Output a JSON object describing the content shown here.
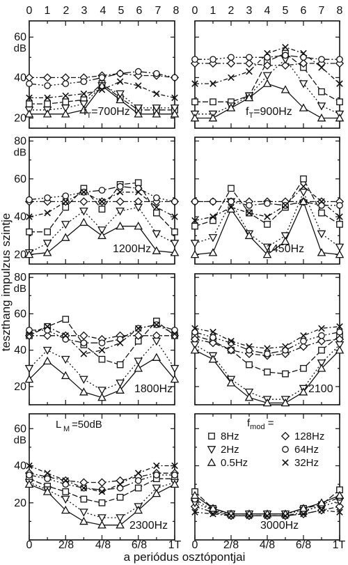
{
  "figure": {
    "y_axis_title": "teszthang impulzus szintje",
    "x_axis_title": "a periódus osztópontjai",
    "top_tick_labels": [
      "0",
      "1",
      "2",
      "3",
      "4",
      "5",
      "6",
      "7",
      "8"
    ],
    "bottom_tick_labels": [
      "0",
      "2/8",
      "4/8",
      "6/8",
      "1T"
    ],
    "unit_label": "dB",
    "lm_label": "L",
    "lm_sub": "M",
    "lm_value": "=50dB"
  },
  "legend": {
    "title": "f",
    "title_sub": "mod",
    "title_suffix": " =",
    "items": [
      {
        "label": "8Hz",
        "marker": "square"
      },
      {
        "label": "128Hz",
        "marker": "diamond"
      },
      {
        "label": "2Hz",
        "marker": "triangle-down"
      },
      {
        "label": "64Hz",
        "marker": "circle"
      },
      {
        "label": "0.5Hz",
        "marker": "triangle-up"
      },
      {
        "label": "32Hz",
        "marker": "cross"
      }
    ]
  },
  "chart_data": [
    {
      "type": "line",
      "panel_label": "f",
      "panel_label_sub": "T",
      "panel_label_suffix": "=700Hz",
      "yticks": [
        20,
        40,
        60
      ],
      "ylim": [
        15,
        68
      ],
      "x": [
        0,
        1,
        2,
        3,
        4,
        5,
        6,
        7,
        8
      ],
      "series": [
        {
          "name": "8Hz",
          "marker": "square",
          "dash": "8,3",
          "values": [
            27,
            27,
            28,
            29,
            37,
            30,
            24,
            24,
            24
          ]
        },
        {
          "name": "128Hz",
          "marker": "diamond",
          "dash": "7,3,2,3",
          "values": [
            40,
            40,
            40,
            40,
            41,
            42,
            41,
            41,
            40
          ]
        },
        {
          "name": "2Hz",
          "marker": "triangle-down",
          "dash": "2,3",
          "values": [
            24,
            24,
            25,
            27,
            36,
            32,
            25,
            25,
            25
          ]
        },
        {
          "name": "64Hz",
          "marker": "circle",
          "dash": "10,3,2,3,2,3",
          "values": [
            37,
            36,
            37,
            38,
            40,
            42,
            43,
            42,
            40
          ]
        },
        {
          "name": "0.5Hz",
          "marker": "triangle-up",
          "dash": "",
          "values": [
            22,
            22,
            22,
            24,
            36,
            29,
            22,
            22,
            22
          ]
        },
        {
          "name": "32Hz",
          "marker": "cross",
          "dash": "6,3,2,3",
          "values": [
            30,
            30,
            31,
            32,
            34,
            38,
            36,
            32,
            30
          ]
        }
      ]
    },
    {
      "type": "line",
      "panel_label": "f",
      "panel_label_sub": "T",
      "panel_label_suffix": "=900Hz",
      "yticks": [
        20,
        40,
        60
      ],
      "ylim": [
        15,
        68
      ],
      "x": [
        0,
        1,
        2,
        3,
        4,
        5,
        6,
        7,
        8
      ],
      "series": [
        {
          "name": "8Hz",
          "marker": "square",
          "dash": "8,3",
          "values": [
            28,
            28,
            28,
            31,
            48,
            52,
            45,
            33,
            28
          ]
        },
        {
          "name": "128Hz",
          "marker": "diamond",
          "dash": "7,3,2,3",
          "values": [
            47,
            47,
            47,
            47,
            46,
            46,
            47,
            47,
            47
          ]
        },
        {
          "name": "2Hz",
          "marker": "triangle-down",
          "dash": "2,3",
          "values": [
            22,
            22,
            26,
            31,
            41,
            49,
            37,
            26,
            22
          ]
        },
        {
          "name": "64Hz",
          "marker": "circle",
          "dash": "10,3,2,3,2,3",
          "values": [
            49,
            49,
            50,
            50,
            50,
            51,
            50,
            49,
            49
          ]
        },
        {
          "name": "0.5Hz",
          "marker": "triangle-up",
          "dash": "",
          "values": [
            20,
            20,
            25,
            30,
            37,
            34,
            25,
            20,
            20
          ]
        },
        {
          "name": "32Hz",
          "marker": "cross",
          "dash": "6,3,2,3",
          "values": [
            37,
            37,
            40,
            43,
            52,
            55,
            52,
            45,
            37
          ]
        }
      ]
    },
    {
      "type": "line",
      "panel_label": "1200Hz",
      "yticks": [
        20,
        40,
        60,
        80
      ],
      "ylim": [
        15,
        82
      ],
      "x": [
        0,
        1,
        2,
        3,
        4,
        5,
        6,
        7,
        8
      ],
      "series": [
        {
          "name": "8Hz",
          "marker": "square",
          "dash": "8,3",
          "values": [
            32,
            32,
            45,
            55,
            44,
            57,
            58,
            42,
            32
          ]
        },
        {
          "name": "128Hz",
          "marker": "diamond",
          "dash": "7,3,2,3",
          "values": [
            48,
            48,
            48,
            48,
            48,
            48,
            48,
            48,
            48
          ]
        },
        {
          "name": "2Hz",
          "marker": "triangle-down",
          "dash": "2,3",
          "values": [
            21,
            26,
            36,
            43,
            33,
            43,
            45,
            31,
            26
          ]
        },
        {
          "name": "64Hz",
          "marker": "circle",
          "dash": "10,3,2,3,2,3",
          "values": [
            49,
            50,
            51,
            53,
            54,
            56,
            55,
            50,
            48
          ]
        },
        {
          "name": "0.5Hz",
          "marker": "triangle-up",
          "dash": "",
          "values": [
            20,
            21,
            29,
            37,
            30,
            35,
            35,
            22,
            21
          ]
        },
        {
          "name": "32Hz",
          "marker": "cross",
          "dash": "6,3,2,3",
          "values": [
            40,
            42,
            48,
            53,
            48,
            53,
            53,
            45,
            40
          ]
        }
      ]
    },
    {
      "type": "line",
      "panel_label": "1450Hz",
      "yticks": [
        20,
        40,
        60,
        80
      ],
      "ylim": [
        15,
        82
      ],
      "x": [
        0,
        1,
        2,
        3,
        4,
        5,
        6,
        7,
        8
      ],
      "series": [
        {
          "name": "8Hz",
          "marker": "square",
          "dash": "8,3",
          "values": [
            35,
            38,
            55,
            42,
            36,
            45,
            60,
            42,
            36
          ]
        },
        {
          "name": "128Hz",
          "marker": "diamond",
          "dash": "7,3,2,3",
          "values": [
            48,
            48,
            48,
            48,
            48,
            48,
            48,
            48,
            48
          ]
        },
        {
          "name": "2Hz",
          "marker": "triangle-down",
          "dash": "2,3",
          "values": [
            26,
            29,
            48,
            31,
            24,
            30,
            53,
            31,
            24
          ]
        },
        {
          "name": "64Hz",
          "marker": "circle",
          "dash": "10,3,2,3,2,3",
          "values": [
            48,
            48,
            48,
            46,
            47,
            46,
            48,
            46,
            46
          ]
        },
        {
          "name": "0.5Hz",
          "marker": "triangle-up",
          "dash": "",
          "values": [
            20,
            21,
            44,
            30,
            20,
            27,
            48,
            21,
            20
          ]
        },
        {
          "name": "32Hz",
          "marker": "cross",
          "dash": "6,3,2,3",
          "values": [
            38,
            40,
            45,
            42,
            40,
            46,
            56,
            48,
            40
          ]
        }
      ]
    },
    {
      "type": "line",
      "panel_label": "1800Hz",
      "yticks": [
        20,
        40,
        60,
        80
      ],
      "ylim": [
        10,
        82
      ],
      "x": [
        0,
        1,
        2,
        3,
        4,
        5,
        6,
        7,
        8
      ],
      "series": [
        {
          "name": "8Hz",
          "marker": "square",
          "dash": "8,3",
          "values": [
            48,
            53,
            57,
            43,
            35,
            32,
            45,
            56,
            48
          ]
        },
        {
          "name": "128Hz",
          "marker": "diamond",
          "dash": "7,3,2,3",
          "values": [
            48,
            48,
            48,
            48,
            46,
            48,
            48,
            48,
            48
          ]
        },
        {
          "name": "2Hz",
          "marker": "triangle-down",
          "dash": "2,3",
          "values": [
            30,
            40,
            35,
            24,
            18,
            22,
            34,
            45,
            30
          ]
        },
        {
          "name": "64Hz",
          "marker": "circle",
          "dash": "10,3,2,3,2,3",
          "values": [
            51,
            51,
            46,
            44,
            44,
            46,
            52,
            54,
            51
          ]
        },
        {
          "name": "0.5Hz",
          "marker": "triangle-up",
          "dash": "",
          "values": [
            24,
            34,
            26,
            17,
            14,
            18,
            30,
            36,
            24
          ]
        },
        {
          "name": "32Hz",
          "marker": "cross",
          "dash": "6,3,2,3",
          "values": [
            49,
            53,
            48,
            38,
            40,
            44,
            52,
            54,
            49
          ]
        }
      ]
    },
    {
      "type": "line",
      "panel_label": "2100",
      "yticks": [
        20,
        40,
        60,
        80
      ],
      "ylim": [
        10,
        82
      ],
      "x": [
        0,
        1,
        2,
        3,
        4,
        5,
        6,
        7,
        8
      ],
      "series": [
        {
          "name": "8Hz",
          "marker": "square",
          "dash": "8,3",
          "values": [
            48,
            45,
            40,
            32,
            28,
            27,
            30,
            40,
            48
          ]
        },
        {
          "name": "128Hz",
          "marker": "diamond",
          "dash": "7,3,2,3",
          "values": [
            46,
            44,
            40,
            38,
            37,
            38,
            42,
            45,
            46
          ]
        },
        {
          "name": "2Hz",
          "marker": "triangle-down",
          "dash": "2,3",
          "values": [
            43,
            37,
            24,
            17,
            13,
            13,
            19,
            33,
            43
          ]
        },
        {
          "name": "64Hz",
          "marker": "circle",
          "dash": "10,3,2,3,2,3",
          "values": [
            50,
            47,
            44,
            40,
            38,
            40,
            45,
            48,
            50
          ]
        },
        {
          "name": "0.5Hz",
          "marker": "triangle-up",
          "dash": "",
          "values": [
            40,
            35,
            22,
            14,
            11,
            11,
            17,
            30,
            40
          ]
        },
        {
          "name": "32Hz",
          "marker": "cross",
          "dash": "6,3,2,3",
          "values": [
            52,
            50,
            45,
            42,
            41,
            42,
            48,
            52,
            53
          ]
        }
      ]
    },
    {
      "type": "line",
      "panel_label": "2300Hz",
      "yticks": [
        20,
        40,
        60
      ],
      "ylim": [
        0,
        68
      ],
      "x": [
        0,
        1,
        2,
        3,
        4,
        5,
        6,
        7,
        8
      ],
      "series": [
        {
          "name": "8Hz",
          "marker": "square",
          "dash": "8,3",
          "values": [
            33,
            29,
            26,
            22,
            20,
            23,
            28,
            33,
            33
          ]
        },
        {
          "name": "128Hz",
          "marker": "diamond",
          "dash": "7,3,2,3",
          "values": [
            36,
            34,
            32,
            31,
            31,
            32,
            34,
            36,
            36
          ]
        },
        {
          "name": "2Hz",
          "marker": "triangle-down",
          "dash": "2,3",
          "values": [
            31,
            27,
            22,
            15,
            12,
            12,
            18,
            28,
            31
          ]
        },
        {
          "name": "64Hz",
          "marker": "circle",
          "dash": "10,3,2,3,2,3",
          "values": [
            35,
            33,
            30,
            28,
            27,
            28,
            32,
            35,
            35
          ]
        },
        {
          "name": "0.5Hz",
          "marker": "triangle-up",
          "dash": "",
          "values": [
            30,
            26,
            16,
            10,
            8,
            8,
            16,
            25,
            30
          ]
        },
        {
          "name": "32Hz",
          "marker": "cross",
          "dash": "6,3,2,3",
          "values": [
            40,
            36,
            32,
            28,
            26,
            30,
            36,
            40,
            40
          ]
        }
      ]
    },
    {
      "type": "line",
      "panel_label": "3000Hz",
      "yticks": [],
      "ylim": [
        0,
        68
      ],
      "x": [
        0,
        1,
        2,
        3,
        4,
        5,
        6,
        7,
        8
      ],
      "series": [
        {
          "name": "8Hz",
          "marker": "square",
          "dash": "8,3",
          "values": [
            26,
            17,
            14,
            14,
            14,
            14,
            17,
            19,
            27
          ]
        },
        {
          "name": "128Hz",
          "marker": "diamond",
          "dash": "7,3,2,3",
          "values": [
            18,
            15,
            13,
            13,
            13,
            13,
            14,
            16,
            18
          ]
        },
        {
          "name": "2Hz",
          "marker": "triangle-down",
          "dash": "2,3",
          "values": [
            20,
            16,
            14,
            14,
            14,
            14,
            16,
            18,
            21
          ]
        },
        {
          "name": "64Hz",
          "marker": "circle",
          "dash": "10,3,2,3,2,3",
          "values": [
            22,
            16,
            13,
            13,
            13,
            13,
            15,
            19,
            23
          ]
        },
        {
          "name": "0.5Hz",
          "marker": "triangle-up",
          "dash": "",
          "values": [
            24,
            17,
            14,
            14,
            14,
            14,
            17,
            20,
            24
          ]
        },
        {
          "name": "32Hz",
          "marker": "cross",
          "dash": "6,3,2,3",
          "values": [
            15,
            14,
            13,
            13,
            13,
            13,
            14,
            16,
            15
          ]
        }
      ]
    }
  ]
}
